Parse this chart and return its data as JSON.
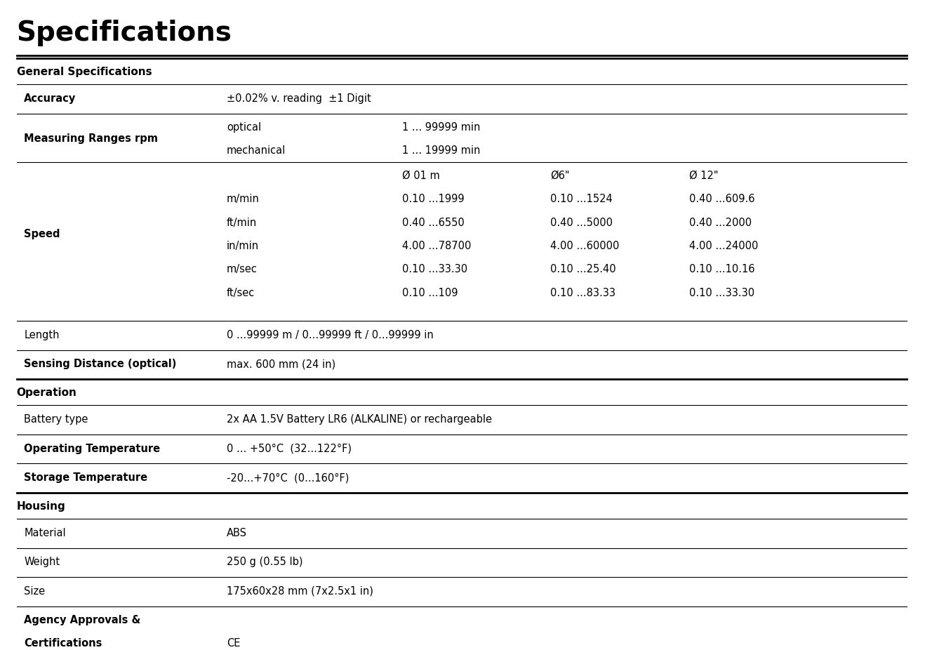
{
  "title": "Specifications",
  "background_color": "#ffffff",
  "text_color": "#000000",
  "title_fontsize": 28,
  "section_fontsize": 11,
  "row_fontsize": 10.5,
  "sections": [
    {
      "type": "section_header",
      "label": "General Specifications",
      "bold": true
    },
    {
      "type": "row",
      "col1": "Accuracy",
      "col1_bold": true,
      "col2": "±0.02% v. reading  ±1 Digit",
      "col2_bold": false,
      "line_above": true
    },
    {
      "type": "multirow",
      "col1": "Measuring Ranges rpm",
      "col1_bold": true,
      "lines": [
        [
          "optical",
          "1 ... 99999 min"
        ],
        [
          "mechanical",
          "1 ... 19999 min"
        ]
      ],
      "line_above": true
    },
    {
      "type": "speed_block",
      "col1": "Speed",
      "col1_bold": true,
      "line_above": true,
      "headers": [
        "",
        "Ø 01 m",
        "Ø6\"",
        "Ø 12\""
      ],
      "rows": [
        [
          "m/min",
          "0.10 ...1999",
          "0.10 ...1524",
          "0.40 ...609.6"
        ],
        [
          "ft/min",
          "0.40 ...6550",
          "0.40 ...5000",
          "0.40 ...2000"
        ],
        [
          "in/min",
          "4.00 ...78700",
          "4.00 ...60000",
          "4.00 ...24000"
        ],
        [
          "m/sec",
          "0.10 ...33.30",
          "0.10 ...25.40",
          "0.10 ...10.16"
        ],
        [
          "ft/sec",
          "0.10 ...109",
          "0.10 ...83.33",
          "0.10 ...33.30"
        ]
      ]
    },
    {
      "type": "spacer"
    },
    {
      "type": "row",
      "col1": "Length",
      "col1_bold": false,
      "col2": "0 ...99999 m / 0...99999 ft / 0...99999 in",
      "col2_bold": false,
      "line_above": true
    },
    {
      "type": "row",
      "col1": "Sensing Distance (optical)",
      "col1_bold": true,
      "col2": "max. 600 mm (24 in)",
      "col2_bold": false,
      "line_above": true
    },
    {
      "type": "section_header",
      "label": "Operation",
      "bold": true
    },
    {
      "type": "row",
      "col1": "Battery type",
      "col1_bold": false,
      "col2": "2x AA 1.5V Battery LR6 (ALKALINE) or rechargeable",
      "col2_bold": false,
      "line_above": true
    },
    {
      "type": "row",
      "col1": "Operating Temperature",
      "col1_bold": true,
      "col2": "0 ... +50°C  (32...122°F)",
      "col2_bold": false,
      "line_above": true
    },
    {
      "type": "row",
      "col1": "Storage Temperature",
      "col1_bold": true,
      "col2": "-20...+70°C  (0...160°F)",
      "col2_bold": false,
      "line_above": true
    },
    {
      "type": "section_header",
      "label": "Housing",
      "bold": true
    },
    {
      "type": "row",
      "col1": "Material",
      "col1_bold": false,
      "col2": "ABS",
      "col2_bold": false,
      "line_above": true
    },
    {
      "type": "row",
      "col1": "Weight",
      "col1_bold": false,
      "col2": "250 g (0.55 lb)",
      "col2_bold": false,
      "line_above": true
    },
    {
      "type": "row",
      "col1": "Size",
      "col1_bold": false,
      "col2": "175x60x28 mm (7x2.5x1 in)",
      "col2_bold": false,
      "line_above": true
    },
    {
      "type": "multirow_bold",
      "col1": "Agency Approvals &\nCertifications",
      "col1_bold": true,
      "col2": "CE",
      "line_above": true
    }
  ]
}
